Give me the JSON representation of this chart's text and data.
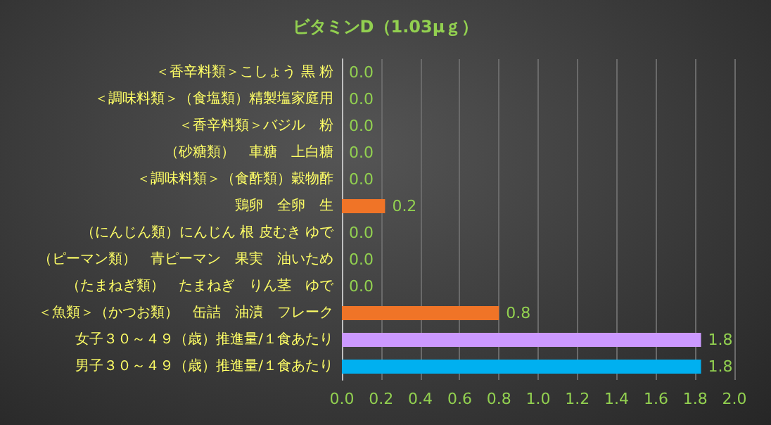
{
  "chart_data": {
    "type": "bar",
    "orientation": "horizontal",
    "title": "ビタミンD（1.03μｇ）",
    "categories": [
      "＜香辛料類＞こしょう 黒 粉",
      "＜調味料類＞（食塩類）精製塩家庭用",
      "＜香辛料類＞バジル　粉",
      "（砂糖類）　車糖　上白糖",
      "＜調味料類＞（食酢類）穀物酢",
      "鶏卵　全卵　生",
      "（にんじん類）にんじん 根 皮むき ゆで",
      "（ピーマン類）　青ピーマン　果実　油いため",
      "（たまねぎ類）　たまねぎ　りん茎　ゆで",
      "＜魚類＞（かつお類）　缶詰　油漬　フレーク",
      "女子３０～４９（歳）推進量/１食あたり",
      "男子３０～４９（歳）推進量/１食あたり"
    ],
    "values": [
      0,
      0,
      0,
      0,
      0,
      0.22,
      0,
      0,
      0,
      0.8,
      1.83,
      1.83
    ],
    "value_labels": [
      "0.0",
      "0.0",
      "0.0",
      "0.0",
      "0.0",
      "0.2",
      "0.0",
      "0.0",
      "0.0",
      "0.8",
      "1.8",
      "1.8"
    ],
    "colors": [
      "#f07427",
      "#f07427",
      "#f07427",
      "#f07427",
      "#f07427",
      "#f07427",
      "#f07427",
      "#f07427",
      "#f07427",
      "#f07427",
      "#cc99ff",
      "#00b0f0"
    ],
    "xlim": [
      0,
      2
    ],
    "xticks": [
      {
        "value": 0,
        "label": "0.0"
      },
      0.2,
      0.4,
      0.6,
      0.8,
      {
        "value": 1,
        "label": "1.0"
      },
      1.2,
      1.4,
      1.6,
      1.8,
      {
        "value": 2,
        "label": "2.0"
      }
    ],
    "grid": "x"
  }
}
